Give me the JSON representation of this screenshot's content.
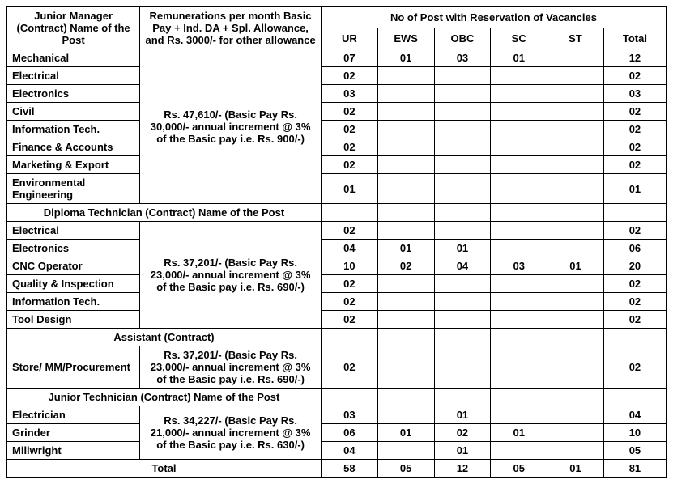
{
  "headers": {
    "post_header": "Junior Manager (Contract) Name of the Post",
    "remun_header": "Remunerations per month Basic Pay + Ind. DA + Spl. Allowance, and Rs. 3000/- for other allowance",
    "vacancy_header": "No of Post with Reservation of Vacancies",
    "ur": "UR",
    "ews": "EWS",
    "obc": "OBC",
    "sc": "SC",
    "st": "ST",
    "total": "Total"
  },
  "sections": {
    "diploma": "Diploma Technician (Contract) Name of the Post",
    "assistant": "Assistant (Contract)",
    "junior_tech": "Junior Technician (Contract) Name of the Post",
    "total_label": "Total"
  },
  "remun": {
    "r1": "Rs. 47,610/-\n(Basic Pay Rs. 30,000/- annual increment @ 3% of the Basic pay i.e. Rs. 900/-)",
    "r2": "Rs. 37,201/-\n(Basic Pay Rs. 23,000/- annual increment @ 3% of the Basic pay i.e. Rs. 690/-)",
    "r3": "Rs. 37,201/-\n(Basic Pay Rs. 23,000/- annual increment @ 3% of the Basic pay i.e. Rs. 690/-)",
    "r4": "Rs. 34,227/-\n(Basic Pay Rs. 21,000/- annual increment @ 3% of the Basic pay i.e. Rs. 630/-)"
  },
  "rows": {
    "jm1": {
      "name": "Mechanical",
      "ur": "07",
      "ews": "01",
      "obc": "03",
      "sc": "01",
      "st": "",
      "total": "12"
    },
    "jm2": {
      "name": "Electrical",
      "ur": "02",
      "ews": "",
      "obc": "",
      "sc": "",
      "st": "",
      "total": "02"
    },
    "jm3": {
      "name": "Electronics",
      "ur": "03",
      "ews": "",
      "obc": "",
      "sc": "",
      "st": "",
      "total": "03"
    },
    "jm4": {
      "name": "Civil",
      "ur": "02",
      "ews": "",
      "obc": "",
      "sc": "",
      "st": "",
      "total": "02"
    },
    "jm5": {
      "name": "Information Tech.",
      "ur": "02",
      "ews": "",
      "obc": "",
      "sc": "",
      "st": "",
      "total": "02"
    },
    "jm6": {
      "name": "Finance & Accounts",
      "ur": "02",
      "ews": "",
      "obc": "",
      "sc": "",
      "st": "",
      "total": "02"
    },
    "jm7": {
      "name": "Marketing & Export",
      "ur": "02",
      "ews": "",
      "obc": "",
      "sc": "",
      "st": "",
      "total": "02"
    },
    "jm8": {
      "name": "Environmental Engineering",
      "ur": "01",
      "ews": "",
      "obc": "",
      "sc": "",
      "st": "",
      "total": "01"
    },
    "dt1": {
      "name": "Electrical",
      "ur": "02",
      "ews": "",
      "obc": "",
      "sc": "",
      "st": "",
      "total": "02"
    },
    "dt2": {
      "name": "Electronics",
      "ur": "04",
      "ews": "01",
      "obc": "01",
      "sc": "",
      "st": "",
      "total": "06"
    },
    "dt3": {
      "name": "CNC Operator",
      "ur": "10",
      "ews": "02",
      "obc": "04",
      "sc": "03",
      "st": "01",
      "total": "20"
    },
    "dt4": {
      "name": "Quality & Inspection",
      "ur": "02",
      "ews": "",
      "obc": "",
      "sc": "",
      "st": "",
      "total": "02"
    },
    "dt5": {
      "name": "Information Tech.",
      "ur": "02",
      "ews": "",
      "obc": "",
      "sc": "",
      "st": "",
      "total": "02"
    },
    "dt6": {
      "name": "Tool Design",
      "ur": "02",
      "ews": "",
      "obc": "",
      "sc": "",
      "st": "",
      "total": "02"
    },
    "as1": {
      "name": "Store/ MM/Procurement",
      "ur": "02",
      "ews": "",
      "obc": "",
      "sc": "",
      "st": "",
      "total": "02"
    },
    "jt1": {
      "name": "Electrician",
      "ur": "03",
      "ews": "",
      "obc": "01",
      "sc": "",
      "st": "",
      "total": "04"
    },
    "jt2": {
      "name": "Grinder",
      "ur": "06",
      "ews": "01",
      "obc": "02",
      "sc": "01",
      "st": "",
      "total": "10"
    },
    "jt3": {
      "name": "Millwright",
      "ur": "04",
      "ews": "",
      "obc": "01",
      "sc": "",
      "st": "",
      "total": "05"
    },
    "grand": {
      "ur": "58",
      "ews": "05",
      "obc": "12",
      "sc": "05",
      "st": "01",
      "total": "81"
    }
  }
}
